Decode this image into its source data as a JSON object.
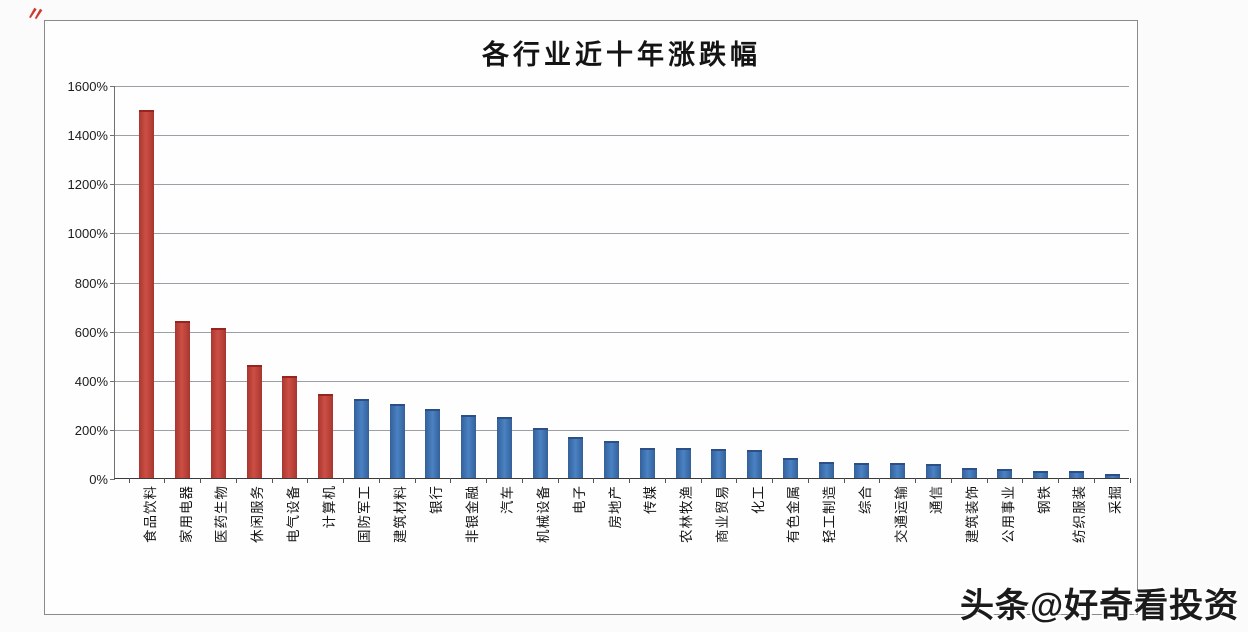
{
  "decor": {
    "corner_mark": "〃"
  },
  "watermark": {
    "text": "头条@好奇看投资"
  },
  "chart_data": {
    "type": "bar",
    "title": "各行业近十年涨跌幅",
    "xlabel": "",
    "ylabel": "",
    "ylim": [
      0,
      1600
    ],
    "y_tick_labels": [
      "1600%",
      "1400%",
      "1200%",
      "1000%",
      "800%",
      "600%",
      "400%",
      "200%",
      "0%"
    ],
    "grid": true,
    "legend": false,
    "categories": [
      "食品饮料",
      "家用电器",
      "医药生物",
      "休闲服务",
      "电气设备",
      "计算机",
      "国防军工",
      "建筑材料",
      "银行",
      "非银金融",
      "汽车",
      "机械设备",
      "电子",
      "房地产",
      "传媒",
      "农林牧渔",
      "商业贸易",
      "化工",
      "有色金属",
      "轻工制造",
      "综合",
      "交通运输",
      "通信",
      "建筑装饰",
      "公用事业",
      "钢铁",
      "纺织服装",
      "采掘"
    ],
    "values": [
      1500,
      640,
      610,
      460,
      415,
      340,
      320,
      300,
      280,
      255,
      250,
      205,
      168,
      152,
      123,
      122,
      119,
      114,
      80,
      64,
      62,
      60,
      57,
      40,
      35,
      30,
      28,
      18
    ],
    "colors": {
      "gainers_red": "#c2423a",
      "default_blue": "#3e79bb"
    },
    "red_bar_count": 6
  }
}
